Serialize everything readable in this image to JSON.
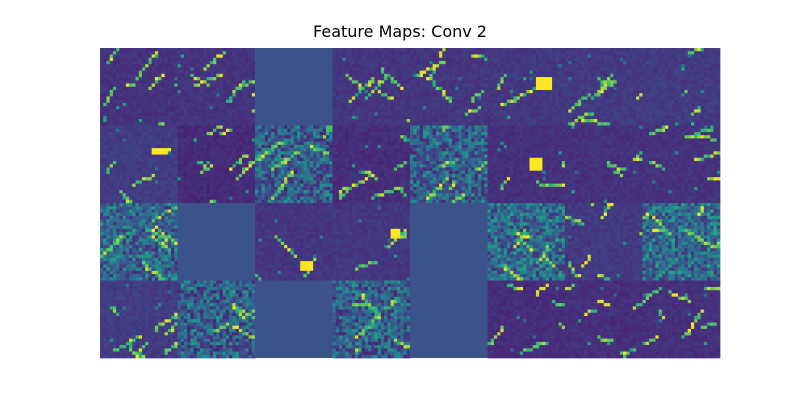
{
  "chart_data": {
    "type": "heatmap",
    "title": "Feature Maps: Conv 2",
    "layout": {
      "rows": 4,
      "cols": 8
    },
    "resolution": 24,
    "colormap": "viridis",
    "colors": {
      "low": "#440154",
      "mid": "#21918c",
      "high": "#fde725",
      "uniform": "#3b528b"
    },
    "axes_visible": false,
    "maps": [
      {
        "kind": "edges",
        "seed": 1
      },
      {
        "kind": "edges",
        "seed": 2
      },
      {
        "kind": "uniform"
      },
      {
        "kind": "edges",
        "seed": 3
      },
      {
        "kind": "edges",
        "seed": 4
      },
      {
        "kind": "blob",
        "seed": 5
      },
      {
        "kind": "edges",
        "seed": 6
      },
      {
        "kind": "sparse",
        "seed": 7
      },
      {
        "kind": "blob",
        "seed": 8
      },
      {
        "kind": "edges",
        "seed": 9
      },
      {
        "kind": "texture",
        "seed": 10
      },
      {
        "kind": "edges",
        "seed": 11
      },
      {
        "kind": "texture",
        "seed": 12
      },
      {
        "kind": "blob",
        "seed": 13
      },
      {
        "kind": "sparse",
        "seed": 14
      },
      {
        "kind": "edges",
        "seed": 15
      },
      {
        "kind": "texture",
        "seed": 16
      },
      {
        "kind": "uniform"
      },
      {
        "kind": "blob",
        "seed": 17
      },
      {
        "kind": "blob",
        "seed": 18
      },
      {
        "kind": "uniform"
      },
      {
        "kind": "texture",
        "seed": 19
      },
      {
        "kind": "edges",
        "seed": 20
      },
      {
        "kind": "texture",
        "seed": 21
      },
      {
        "kind": "edges",
        "seed": 22
      },
      {
        "kind": "texture",
        "seed": 23
      },
      {
        "kind": "uniform"
      },
      {
        "kind": "texture",
        "seed": 24
      },
      {
        "kind": "uniform"
      },
      {
        "kind": "edges",
        "seed": 25
      },
      {
        "kind": "edges",
        "seed": 26
      },
      {
        "kind": "edges",
        "seed": 27
      }
    ]
  }
}
